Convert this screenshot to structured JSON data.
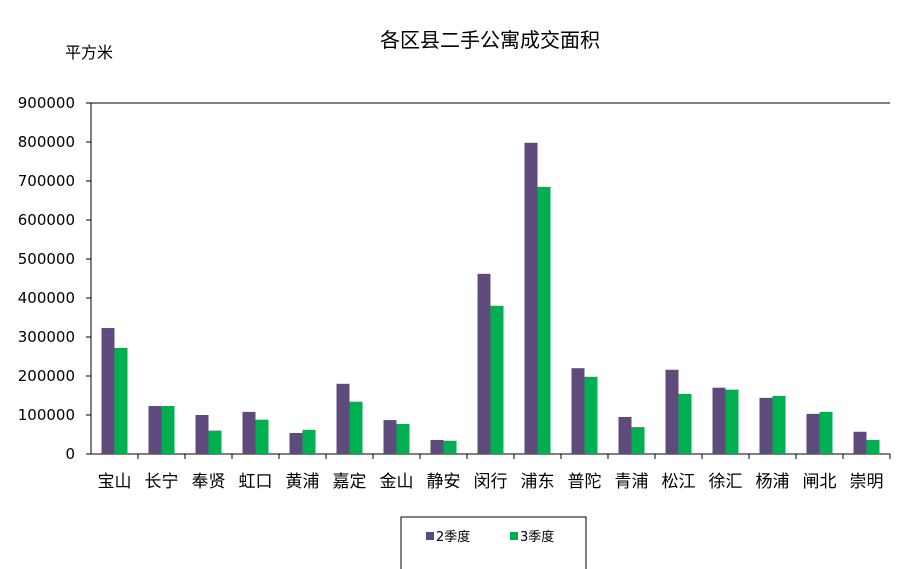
{
  "chart_data": {
    "type": "bar",
    "title": "各区县二手公寓成交面积",
    "ylabel": "平方米",
    "xlabel": "",
    "ylim": [
      0,
      900000
    ],
    "yticks": [
      0,
      100000,
      200000,
      300000,
      400000,
      500000,
      600000,
      700000,
      800000,
      900000
    ],
    "grid": false,
    "legend_position": "bottom",
    "categories": [
      "宝山",
      "长宁",
      "奉贤",
      "虹口",
      "黄浦",
      "嘉定",
      "金山",
      "静安",
      "闵行",
      "浦东",
      "普陀",
      "青浦",
      "松江",
      "徐汇",
      "杨浦",
      "闸北",
      "崇明"
    ],
    "series": [
      {
        "name": "2季度",
        "color": "#5E4B7C",
        "values": [
          323000,
          123000,
          100000,
          108000,
          54000,
          180000,
          87000,
          36000,
          462000,
          798000,
          220000,
          95000,
          216000,
          170000,
          144000,
          103000,
          57000
        ]
      },
      {
        "name": "3季度",
        "color": "#00B050",
        "values": [
          272000,
          123000,
          60000,
          88000,
          62000,
          134000,
          77000,
          34000,
          380000,
          685000,
          198000,
          69000,
          154000,
          165000,
          149000,
          108000,
          36000
        ]
      }
    ]
  }
}
